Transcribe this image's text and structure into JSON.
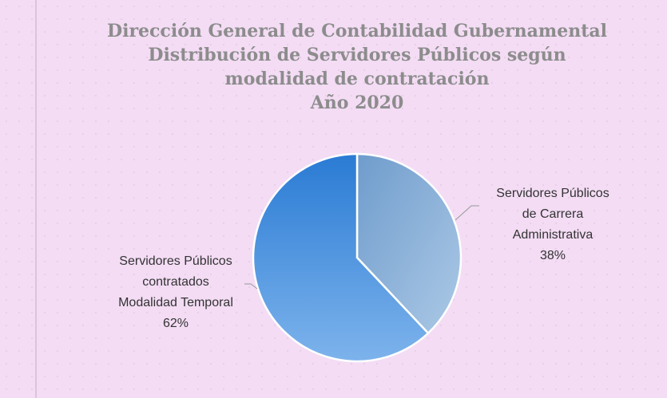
{
  "chart_data": {
    "type": "pie",
    "title": [
      "Dirección General de Contabilidad Gubernamental",
      "Distribución de Servidores Públicos según",
      "modalidad de contratación",
      "Año 2020"
    ],
    "categories": [
      [
        "Servidores Públicos",
        "de Carrera",
        "Administrativa"
      ],
      [
        "Servidores Públicos",
        "contratados",
        "Modalidad Temporal"
      ]
    ],
    "values": [
      38,
      62
    ],
    "value_labels": [
      "38%",
      "62%"
    ],
    "colors": [
      "#8fb6df",
      "#4f93e0"
    ]
  }
}
